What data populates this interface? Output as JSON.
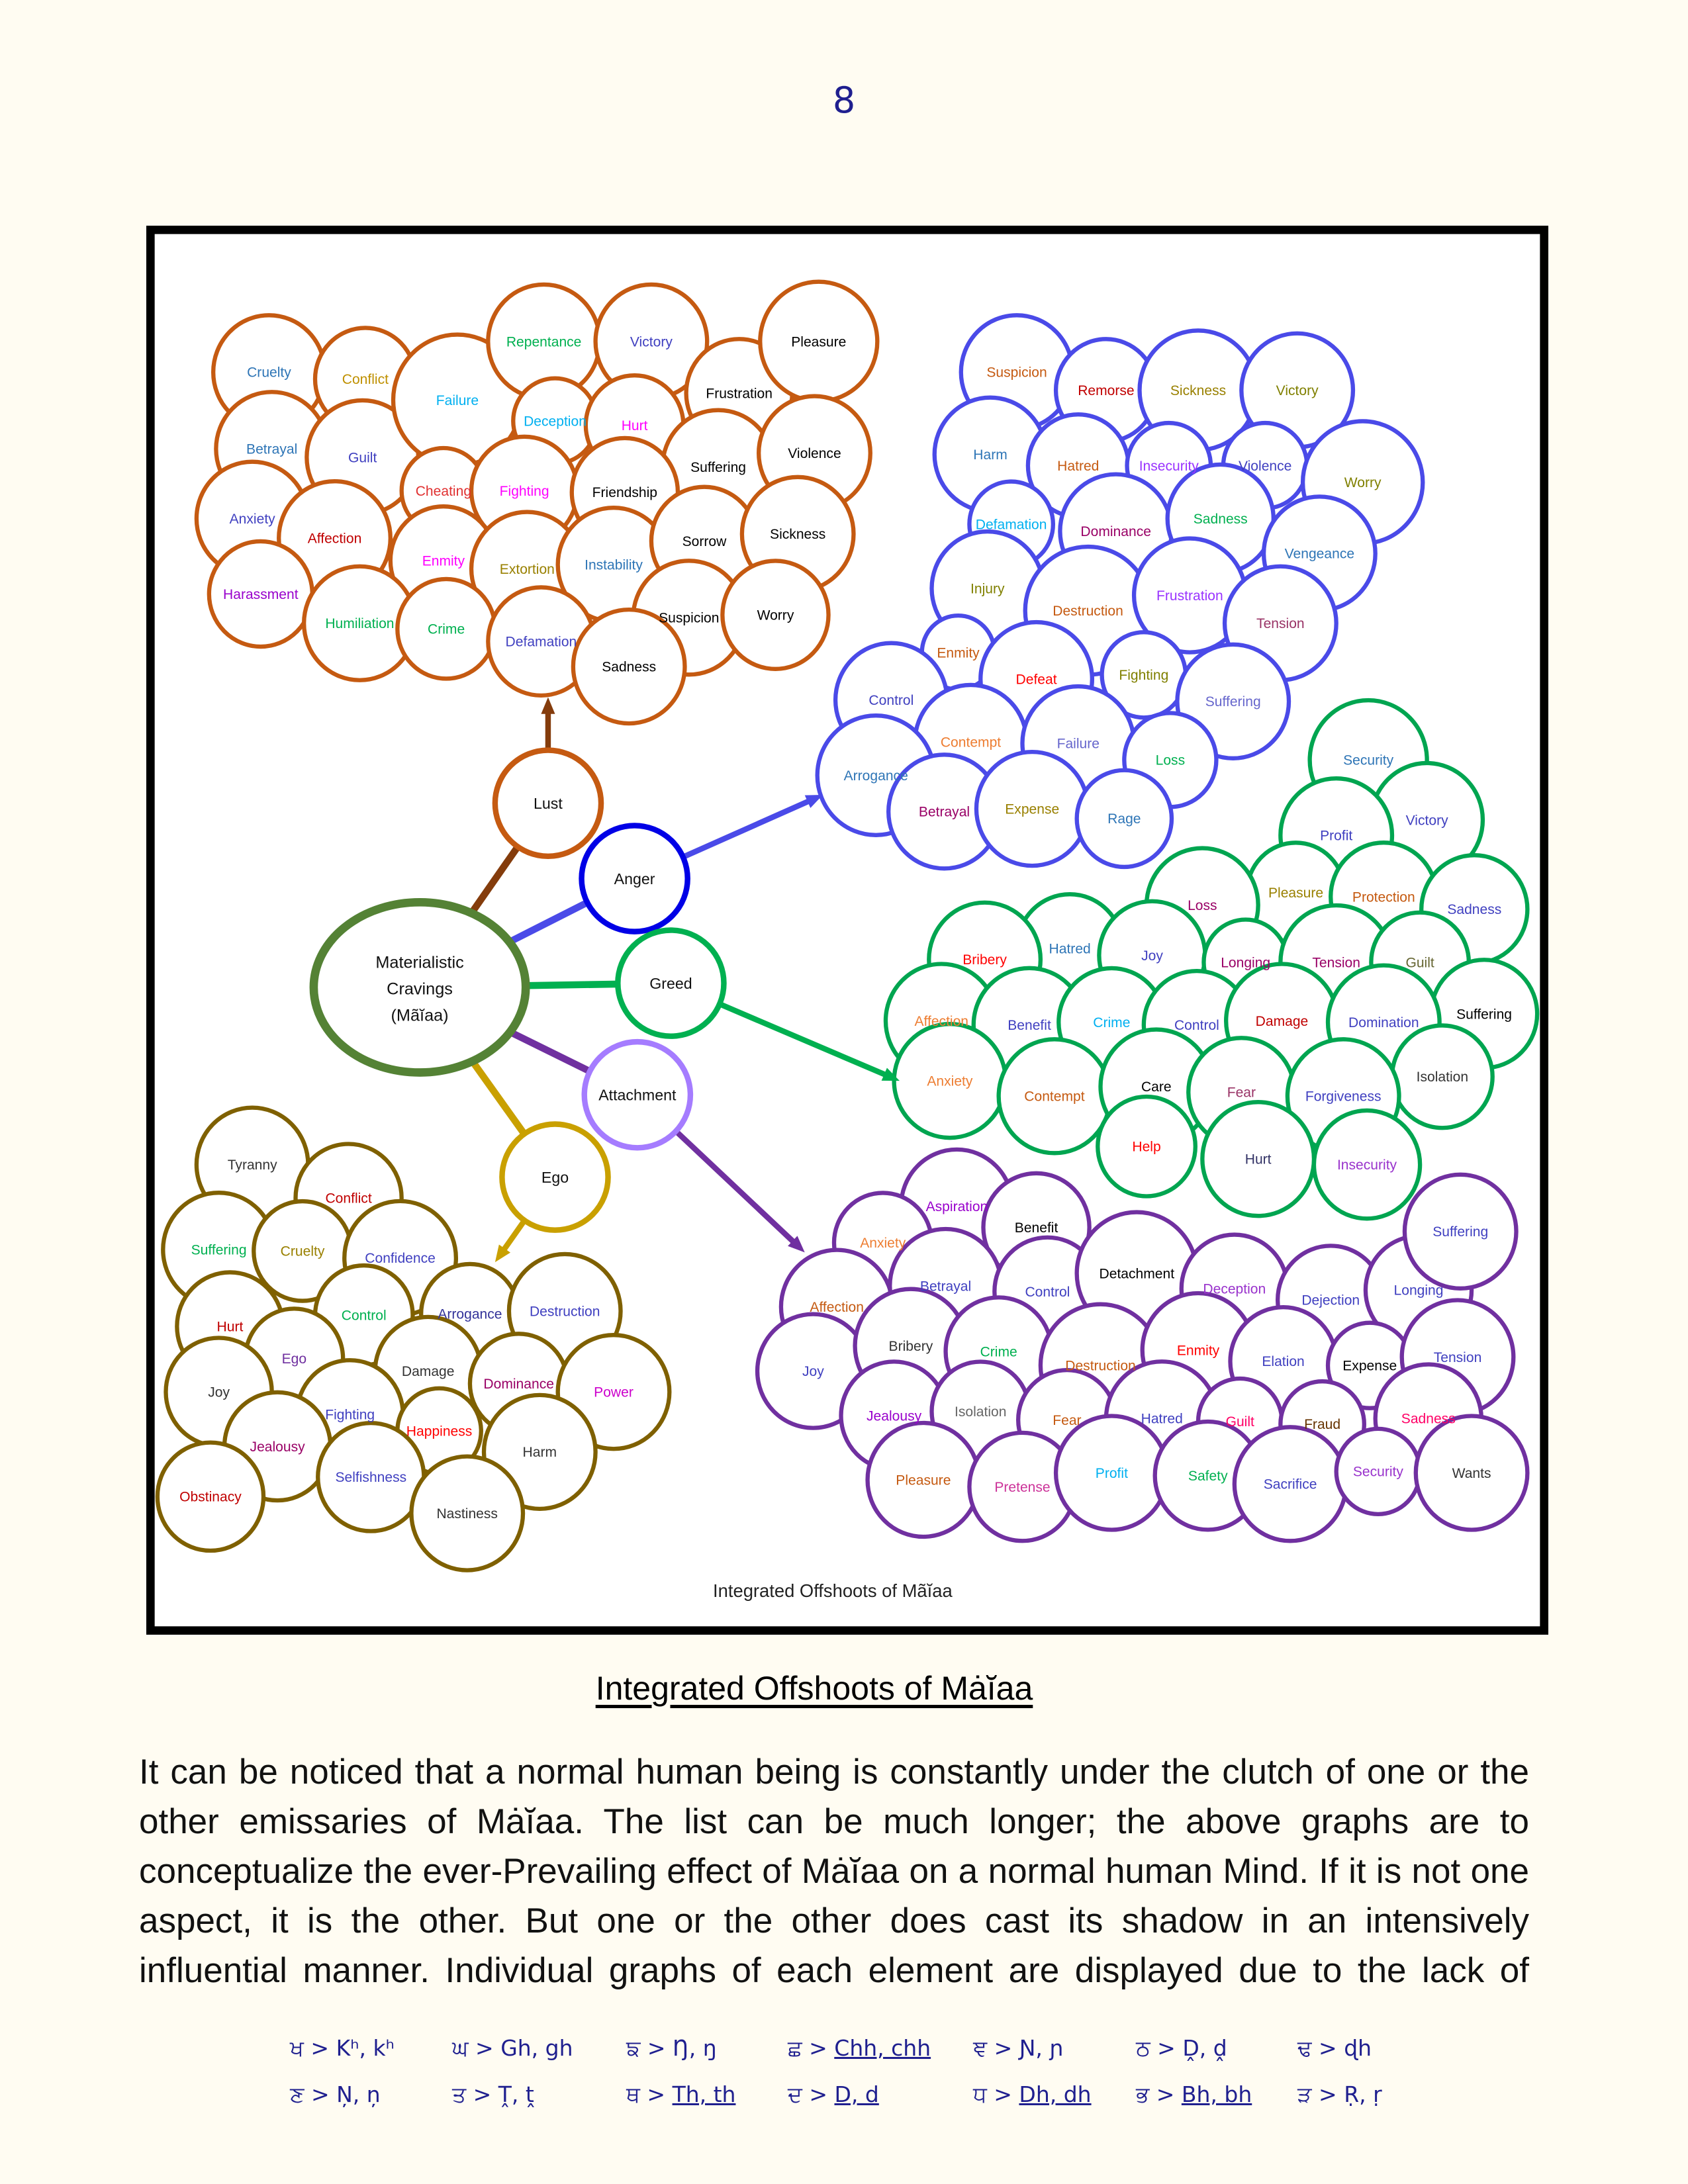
{
  "page_number": "8",
  "diagram": {
    "inner_title": "Integrated Offshoots of  Mãĭaa",
    "center": {
      "label_lines": [
        "Materialistic",
        "Cravings",
        "(Mãĭaa)"
      ],
      "stroke": "#548235"
    },
    "hubs": [
      {
        "label": "Lust",
        "stroke": "#c55a11",
        "line": "#843c0c"
      },
      {
        "label": "Anger",
        "stroke": "#0000e6",
        "line": "#4a4ae8"
      },
      {
        "label": "Greed",
        "stroke": "#00b050",
        "line": "#00b050"
      },
      {
        "label": "Attachment",
        "stroke": "#a57cff",
        "line": "#7030a0"
      },
      {
        "label": "Ego",
        "stroke": "#c9a000",
        "line": "#c9a000"
      }
    ],
    "clusters": [
      {
        "stroke": "#c55a11",
        "nodes": [
          {
            "label": "Cruelty",
            "color": "#2e75b6"
          },
          {
            "label": "Conflict",
            "color": "#bf9000"
          },
          {
            "label": "Betrayal",
            "color": "#2e75b6"
          },
          {
            "label": "Guilt",
            "color": "#4040c0"
          },
          {
            "label": "Failure",
            "color": "#00b0f0"
          },
          {
            "label": "Repentance",
            "color": "#00b050"
          },
          {
            "label": "Victory",
            "color": "#4040c0"
          },
          {
            "label": "Frustration",
            "color": "#000000"
          },
          {
            "label": "Pleasure",
            "color": "#000000"
          },
          {
            "label": "Deception",
            "color": "#00b0f0"
          },
          {
            "label": "Hurt",
            "color": "#ff00ff"
          },
          {
            "label": "Suffering",
            "color": "#000000"
          },
          {
            "label": "Violence",
            "color": "#000000"
          },
          {
            "label": "Cheating",
            "color": "#e03030"
          },
          {
            "label": "Fighting",
            "color": "#ff00ff"
          },
          {
            "label": "Friendship",
            "color": "#000000"
          },
          {
            "label": "Anxiety",
            "color": "#4040c0"
          },
          {
            "label": "Affection",
            "color": "#c00000"
          },
          {
            "label": "Enmity",
            "color": "#ff00ff"
          },
          {
            "label": "Extortion",
            "color": "#998000"
          },
          {
            "label": "Instability",
            "color": "#2e75b6"
          },
          {
            "label": "Sorrow",
            "color": "#000000"
          },
          {
            "label": "Sickness",
            "color": "#000000"
          },
          {
            "label": "Harassment",
            "color": "#9900cc"
          },
          {
            "label": "Humiliation",
            "color": "#00b050"
          },
          {
            "label": "Crime",
            "color": "#00b050"
          },
          {
            "label": "Defamation",
            "color": "#4040c0"
          },
          {
            "label": "Suspicion",
            "color": "#000000"
          },
          {
            "label": "Worry",
            "color": "#000000"
          },
          {
            "label": "Sadness",
            "color": "#000000"
          }
        ]
      },
      {
        "stroke": "#4a4ae8",
        "nodes": [
          {
            "label": "Suspicion",
            "color": "#c55a11"
          },
          {
            "label": "Remorse",
            "color": "#c00000"
          },
          {
            "label": "Sickness",
            "color": "#998000"
          },
          {
            "label": "Victory",
            "color": "#808000"
          },
          {
            "label": "Harm",
            "color": "#2e75b6"
          },
          {
            "label": "Hatred",
            "color": "#c55a11"
          },
          {
            "label": "Insecurity",
            "color": "#9933ff"
          },
          {
            "label": "Violence",
            "color": "#4040c0"
          },
          {
            "label": "Worry",
            "color": "#808000"
          },
          {
            "label": "Defamation",
            "color": "#00b0f0"
          },
          {
            "label": "Dominance",
            "color": "#990066"
          },
          {
            "label": "Sadness",
            "color": "#00b050"
          },
          {
            "label": "Vengeance",
            "color": "#2e75b6"
          },
          {
            "label": "Injury",
            "color": "#808000"
          },
          {
            "label": "Destruction",
            "color": "#c55a11"
          },
          {
            "label": "Frustration",
            "color": "#9933ff"
          },
          {
            "label": "Tension",
            "color": "#993366"
          },
          {
            "label": "Enmity",
            "color": "#c55a11"
          },
          {
            "label": "Defeat",
            "color": "#ff0000"
          },
          {
            "label": "Fighting",
            "color": "#808000"
          },
          {
            "label": "Suffering",
            "color": "#6666cc"
          },
          {
            "label": "Control",
            "color": "#4040c0"
          },
          {
            "label": "Contempt",
            "color": "#ed7d31"
          },
          {
            "label": "Failure",
            "color": "#6666cc"
          },
          {
            "label": "Loss",
            "color": "#00b050"
          },
          {
            "label": "Arrogance",
            "color": "#2e75b6"
          },
          {
            "label": "Betrayal",
            "color": "#990066"
          },
          {
            "label": "Expense",
            "color": "#998000"
          },
          {
            "label": "Rage",
            "color": "#2e75b6"
          }
        ]
      },
      {
        "stroke": "#00a550",
        "nodes": [
          {
            "label": "Security",
            "color": "#2e75b6"
          },
          {
            "label": "Victory",
            "color": "#4040c0"
          },
          {
            "label": "Profit",
            "color": "#4040c0"
          },
          {
            "label": "Pleasure",
            "color": "#998000"
          },
          {
            "label": "Protection",
            "color": "#c55a11"
          },
          {
            "label": "Sadness",
            "color": "#4040c0"
          },
          {
            "label": "Loss",
            "color": "#990066"
          },
          {
            "label": "Hatred",
            "color": "#2e75b6"
          },
          {
            "label": "Joy",
            "color": "#4040c0"
          },
          {
            "label": "Bribery",
            "color": "#ff0000"
          },
          {
            "label": "Longing",
            "color": "#990066"
          },
          {
            "label": "Tension",
            "color": "#990066"
          },
          {
            "label": "Guilt",
            "color": "#666633"
          },
          {
            "label": "Suffering",
            "color": "#000000"
          },
          {
            "label": "Affection",
            "color": "#ed7d31"
          },
          {
            "label": "Benefit",
            "color": "#4040c0"
          },
          {
            "label": "Crime",
            "color": "#00b0f0"
          },
          {
            "label": "Control",
            "color": "#4040c0"
          },
          {
            "label": "Damage",
            "color": "#c00000"
          },
          {
            "label": "Domination",
            "color": "#4040c0"
          },
          {
            "label": "Isolation",
            "color": "#333333"
          },
          {
            "label": "Anxiety",
            "color": "#ed7d31"
          },
          {
            "label": "Contempt",
            "color": "#c55a11"
          },
          {
            "label": "Care",
            "color": "#000000"
          },
          {
            "label": "Fear",
            "color": "#993366"
          },
          {
            "label": "Forgiveness",
            "color": "#4040c0"
          },
          {
            "label": "Help",
            "color": "#ff0000"
          },
          {
            "label": "Hurt",
            "color": "#333366"
          },
          {
            "label": "Insecurity",
            "color": "#9933cc"
          }
        ]
      },
      {
        "stroke": "#7030a0",
        "nodes": [
          {
            "label": "Aspiration",
            "color": "#9900cc"
          },
          {
            "label": "Anxiety",
            "color": "#ed7d31"
          },
          {
            "label": "Benefit",
            "color": "#000000"
          },
          {
            "label": "Affection",
            "color": "#c55a11"
          },
          {
            "label": "Betrayal",
            "color": "#4040c0"
          },
          {
            "label": "Control",
            "color": "#4040c0"
          },
          {
            "label": "Detachment",
            "color": "#000000"
          },
          {
            "label": "Deception",
            "color": "#9933cc"
          },
          {
            "label": "Dejection",
            "color": "#4040c0"
          },
          {
            "label": "Longing",
            "color": "#4040c0"
          },
          {
            "label": "Suffering",
            "color": "#4040c0"
          },
          {
            "label": "Joy",
            "color": "#4040c0"
          },
          {
            "label": "Bribery",
            "color": "#333333"
          },
          {
            "label": "Crime",
            "color": "#00b050"
          },
          {
            "label": "Destruction",
            "color": "#c55a11"
          },
          {
            "label": "Enmity",
            "color": "#ff0000"
          },
          {
            "label": "Elation",
            "color": "#4040c0"
          },
          {
            "label": "Expense",
            "color": "#000000"
          },
          {
            "label": "Tension",
            "color": "#4040c0"
          },
          {
            "label": "Jealousy",
            "color": "#9900cc"
          },
          {
            "label": "Isolation",
            "color": "#666666"
          },
          {
            "label": "Fear",
            "color": "#c55a11"
          },
          {
            "label": "Hatred",
            "color": "#4040c0"
          },
          {
            "label": "Guilt",
            "color": "#ff0066"
          },
          {
            "label": "Fraud",
            "color": "#663300"
          },
          {
            "label": "Sadness",
            "color": "#ff0066"
          },
          {
            "label": "Pleasure",
            "color": "#c55a11"
          },
          {
            "label": "Pretense",
            "color": "#cc3399"
          },
          {
            "label": "Profit",
            "color": "#00b0f0"
          },
          {
            "label": "Safety",
            "color": "#00b050"
          },
          {
            "label": "Sacrifice",
            "color": "#4040c0"
          },
          {
            "label": "Security",
            "color": "#9933cc"
          },
          {
            "label": "Wants",
            "color": "#333333"
          }
        ]
      },
      {
        "stroke": "#7f6000",
        "nodes": [
          {
            "label": "Tyranny",
            "color": "#333333"
          },
          {
            "label": "Conflict",
            "color": "#c00000"
          },
          {
            "label": "Suffering",
            "color": "#00b050"
          },
          {
            "label": "Cruelty",
            "color": "#998000"
          },
          {
            "label": "Confidence",
            "color": "#4040c0"
          },
          {
            "label": "Hurt",
            "color": "#c00000"
          },
          {
            "label": "Control",
            "color": "#00b050"
          },
          {
            "label": "Arrogance",
            "color": "#333399"
          },
          {
            "label": "Destruction",
            "color": "#4040c0"
          },
          {
            "label": "Ego",
            "color": "#7030a0"
          },
          {
            "label": "Joy",
            "color": "#333333"
          },
          {
            "label": "Damage",
            "color": "#333333"
          },
          {
            "label": "Dominance",
            "color": "#990066"
          },
          {
            "label": "Power",
            "color": "#cc00cc"
          },
          {
            "label": "Fighting",
            "color": "#4040c0"
          },
          {
            "label": "Jealousy",
            "color": "#990066"
          },
          {
            "label": "Happiness",
            "color": "#ff0000"
          },
          {
            "label": "Harm",
            "color": "#333333"
          },
          {
            "label": "Obstinacy",
            "color": "#c00000"
          },
          {
            "label": "Selfishness",
            "color": "#4040c0"
          },
          {
            "label": "Nastiness",
            "color": "#333333"
          }
        ]
      }
    ]
  },
  "caption": "Integrated Offshoots of Mȧĭaa",
  "paragraph_lines": [
    "It can be noticed that a normal human being is constantly under the clutch of one or the",
    "other emissaries of Mȧĭaa. The list can be much longer; the above graphs are to",
    "conceptualize the ever-Prevailing effect of Mȧĭaa on a normal human Mind. If it is not one",
    "aspect, it is the other. But one or the other does cast its shadow in an intensively",
    "influential manner. Individual graphs of each element are displayed due to the lack of"
  ],
  "transliteration": [
    [
      {
        "glyph": "ਖ",
        "text": "Kʰ, kʰ",
        "underline": false
      },
      {
        "glyph": "ਘ",
        "text": "Gh, gh",
        "underline": false
      },
      {
        "glyph": "ਙ",
        "text": "Ŋ, ŋ",
        "underline": false
      },
      {
        "glyph": "ਛ",
        "text": "Chh, chh",
        "underline": true
      },
      {
        "glyph": "ਞ",
        "text": "Ɲ, ɲ",
        "underline": false
      },
      {
        "glyph": "ਠ",
        "text": "Ḓ, ḓ",
        "underline": false
      },
      {
        "glyph": "ਢ",
        "text": "ɖh",
        "underline": false
      }
    ],
    [
      {
        "glyph": "ਣ",
        "text": "Ņ, ņ",
        "underline": false
      },
      {
        "glyph": "ਤ",
        "text": "Ṱ, ṱ",
        "underline": false
      },
      {
        "glyph": "ਥ",
        "text": "Th, th",
        "underline": true
      },
      {
        "glyph": "ਦ",
        "text": "D, d",
        "underline": true
      },
      {
        "glyph": "ਧ",
        "text": "Dh, dh",
        "underline": true
      },
      {
        "glyph": "ਭ",
        "text": "Bh, bh",
        "underline": true
      },
      {
        "glyph": "ੜ",
        "text": "Ṛ, ṛ",
        "underline": false
      }
    ]
  ]
}
